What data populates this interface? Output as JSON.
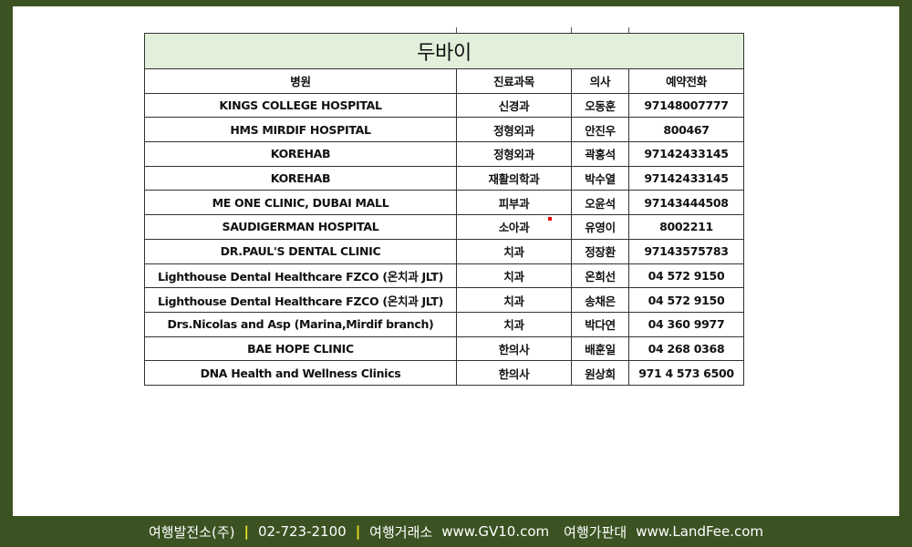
{
  "table": {
    "title": "두바이",
    "headers": [
      "병원",
      "진료과목",
      "의사",
      "예약전화"
    ],
    "rows": [
      [
        "KINGS COLLEGE HOSPITAL",
        "신경과",
        "오동훈",
        "97148007777"
      ],
      [
        "HMS MIRDIF HOSPITAL",
        "정형외과",
        "안진우",
        "800467"
      ],
      [
        "KOREHAB",
        "정형외과",
        "곽홍석",
        "97142433145"
      ],
      [
        "KOREHAB",
        "재활의학과",
        "박수열",
        "97142433145"
      ],
      [
        "ME ONE CLINIC, DUBAI MALL",
        "피부과",
        "오윤석",
        "97143444508"
      ],
      [
        "SAUDIGERMAN HOSPITAL",
        "소아과",
        "유영이",
        "8002211"
      ],
      [
        "DR.PAUL'S DENTAL CLINIC",
        "치과",
        "정장환",
        "97143575783"
      ],
      [
        "Lighthouse Dental Healthcare FZCO (온치과 JLT)",
        "치과",
        "온희선",
        "04 572 9150"
      ],
      [
        "Lighthouse Dental Healthcare FZCO (온치과 JLT)",
        "치과",
        "송채은",
        "04 572 9150"
      ],
      [
        "Drs.Nicolas and Asp (Marina,Mirdif branch)",
        "치과",
        "박다연",
        "04 360 9977"
      ],
      [
        "BAE HOPE CLINIC",
        "한의사",
        "배훈일",
        "04 268 0368"
      ],
      [
        "DNA Health and Wellness Clinics",
        "한의사",
        "원상희",
        "971 4 573 6500"
      ]
    ]
  },
  "footer": {
    "company": "여행발전소(주)",
    "separator": "|",
    "phone": "02-723-2100",
    "site1_name": "여행거래소",
    "site1_url": "www.GV10.com",
    "site2_name": "여행가판대",
    "site2_url": "www.LandFee.com"
  },
  "colors": {
    "frame": "#3b5323",
    "title_bg": "#e2efda",
    "separator": "#f0e020"
  }
}
